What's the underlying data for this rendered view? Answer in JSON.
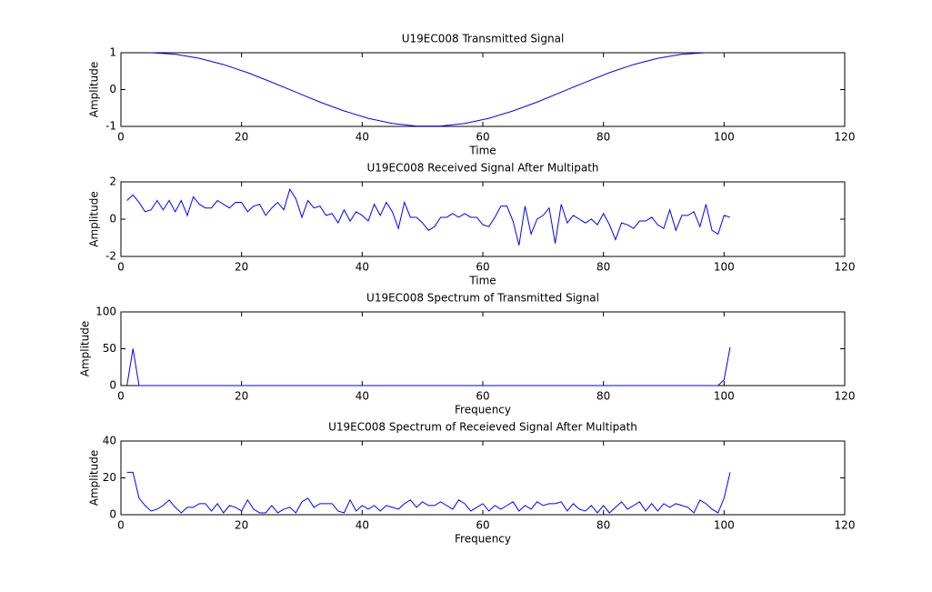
{
  "chart_data": [
    {
      "type": "line",
      "title": "U19EC008 Transmitted Signal",
      "xlabel": "Time",
      "ylabel": "Amplitude",
      "x": [
        5,
        9,
        13,
        17,
        21,
        25,
        29,
        33,
        37,
        41,
        45,
        49,
        53,
        57,
        61,
        65,
        69,
        73,
        77,
        81,
        85,
        89,
        93,
        97
      ],
      "series": [
        {
          "color": "#0000ff",
          "values": [
            1,
            0.96,
            0.85,
            0.68,
            0.46,
            0.2,
            -0.07,
            -0.34,
            -0.58,
            -0.78,
            -0.92,
            -0.99,
            -0.99,
            -0.92,
            -0.78,
            -0.58,
            -0.34,
            -0.07,
            0.2,
            0.46,
            0.68,
            0.85,
            0.96,
            1
          ]
        }
      ],
      "xlim": [
        0,
        120
      ],
      "xticks": [
        0,
        20,
        40,
        60,
        80,
        100,
        120
      ],
      "ylim": [
        -1,
        1
      ],
      "yticks": [
        -1,
        0,
        1
      ]
    },
    {
      "type": "line",
      "title": "U19EC008 Received Signal After Multipath",
      "xlabel": "Time",
      "ylabel": "Amplitude",
      "x": [
        1,
        2,
        3,
        4,
        5,
        6,
        7,
        8,
        9,
        10,
        11,
        12,
        13,
        14,
        15,
        16,
        17,
        18,
        19,
        20,
        21,
        22,
        23,
        24,
        25,
        26,
        27,
        28,
        29,
        30,
        31,
        32,
        33,
        34,
        35,
        36,
        37,
        38,
        39,
        40,
        41,
        42,
        43,
        44,
        45,
        46,
        47,
        48,
        49,
        50,
        51,
        52,
        53,
        54,
        55,
        56,
        57,
        58,
        59,
        60,
        61,
        62,
        63,
        64,
        65,
        66,
        67,
        68,
        69,
        70,
        71,
        72,
        73,
        74,
        75,
        76,
        77,
        78,
        79,
        80,
        81,
        82,
        83,
        84,
        85,
        86,
        87,
        88,
        89,
        90,
        91,
        92,
        93,
        94,
        95,
        96,
        97,
        98,
        99,
        100,
        101
      ],
      "series": [
        {
          "color": "#0000ff",
          "values": [
            1,
            1.3,
            0.9,
            0.4,
            0.5,
            1,
            0.5,
            1,
            0.4,
            1,
            0.2,
            1.2,
            0.8,
            0.6,
            0.6,
            1,
            0.8,
            0.6,
            0.9,
            0.9,
            0.4,
            0.7,
            0.8,
            0.2,
            0.6,
            0.9,
            0.5,
            1.6,
            1.1,
            0.1,
            1,
            0.6,
            0.7,
            0.2,
            0.3,
            -0.2,
            0.5,
            -0.1,
            0.4,
            0.2,
            -0.1,
            0.8,
            0.2,
            0.9,
            0.4,
            -0.5,
            0.9,
            0.1,
            0.1,
            -0.2,
            -0.6,
            -0.4,
            0.1,
            0.1,
            0.3,
            0.1,
            0.3,
            0.1,
            0.1,
            -0.3,
            -0.4,
            0.1,
            0.7,
            0.7,
            -0.1,
            -1.4,
            0.7,
            -0.8,
            0,
            0.2,
            0.6,
            -1.3,
            0.8,
            -0.2,
            0.2,
            0,
            -0.2,
            0,
            -0.3,
            0.3,
            -0.3,
            -1.1,
            -0.2,
            -0.3,
            -0.5,
            -0.1,
            -0.1,
            0.1,
            -0.3,
            -0.5,
            0.5,
            -0.6,
            0.2,
            0.2,
            0.4,
            -0.4,
            0.8,
            -0.6,
            -0.8,
            0.2,
            0.1
          ]
        }
      ],
      "xlim": [
        0,
        120
      ],
      "xticks": [
        0,
        20,
        40,
        60,
        80,
        100,
        120
      ],
      "ylim": [
        -2,
        2
      ],
      "yticks": [
        -2,
        0,
        2
      ]
    },
    {
      "type": "line",
      "title": "U19EC008 Spectrum of Transmitted Signal",
      "xlabel": "Frequency",
      "ylabel": "Amplitude",
      "x": [
        1,
        2,
        3,
        99,
        100,
        101
      ],
      "series": [
        {
          "color": "#0000ff",
          "values": [
            0,
            50,
            0,
            0,
            8,
            52
          ]
        }
      ],
      "xlim": [
        0,
        120
      ],
      "xticks": [
        0,
        20,
        40,
        60,
        80,
        100,
        120
      ],
      "ylim": [
        0,
        100
      ],
      "yticks": [
        0,
        50,
        100
      ]
    },
    {
      "type": "line",
      "title": "U19EC008 Spectrum of Receieved Signal After Multipath",
      "xlabel": "Frequency",
      "ylabel": "Amplitude",
      "x": [
        1,
        2,
        3,
        4,
        5,
        6,
        7,
        8,
        9,
        10,
        11,
        12,
        13,
        14,
        15,
        16,
        17,
        18,
        19,
        20,
        21,
        22,
        23,
        24,
        25,
        26,
        27,
        28,
        29,
        30,
        31,
        32,
        33,
        34,
        35,
        36,
        37,
        38,
        39,
        40,
        41,
        42,
        43,
        44,
        45,
        46,
        47,
        48,
        49,
        50,
        51,
        52,
        53,
        54,
        55,
        56,
        57,
        58,
        59,
        60,
        61,
        62,
        63,
        64,
        65,
        66,
        67,
        68,
        69,
        70,
        71,
        72,
        73,
        74,
        75,
        76,
        77,
        78,
        79,
        80,
        81,
        82,
        83,
        84,
        85,
        86,
        87,
        88,
        89,
        90,
        91,
        92,
        93,
        94,
        95,
        96,
        97,
        98,
        99,
        100,
        101
      ],
      "series": [
        {
          "color": "#0000ff",
          "values": [
            23,
            23,
            9,
            5,
            2,
            3,
            5,
            8,
            4,
            1,
            4,
            4,
            6,
            6,
            2,
            6,
            1,
            5,
            4,
            2,
            8,
            3,
            1,
            1,
            5,
            1,
            3,
            4,
            1,
            7,
            9,
            4,
            6,
            6,
            6,
            2,
            1,
            8,
            2,
            5,
            3,
            5,
            2,
            5,
            4,
            3,
            6,
            8,
            4,
            7,
            5,
            5,
            7,
            5,
            3,
            8,
            6,
            2,
            4,
            6,
            2,
            5,
            3,
            5,
            7,
            2,
            5,
            3,
            7,
            5,
            6,
            6,
            7,
            2,
            6,
            3,
            2,
            5,
            1,
            5,
            1,
            4,
            7,
            3,
            5,
            7,
            2,
            6,
            2,
            6,
            4,
            6,
            5,
            4,
            1,
            8,
            6,
            3,
            1,
            9,
            23
          ]
        }
      ],
      "xlim": [
        0,
        120
      ],
      "xticks": [
        0,
        20,
        40,
        60,
        80,
        100,
        120
      ],
      "ylim": [
        0,
        40
      ],
      "yticks": [
        0,
        20,
        40
      ]
    }
  ]
}
